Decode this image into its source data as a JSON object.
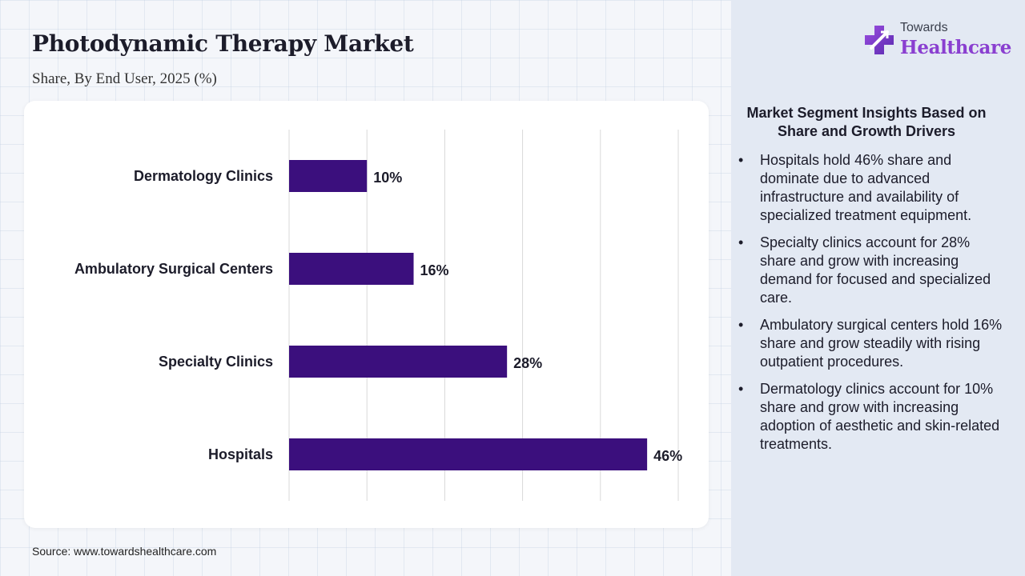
{
  "header": {
    "title": "Photodynamic Therapy Market",
    "subtitle": "Share, By End User, 2025 (%)"
  },
  "source": "Source: www.towardshealthcare.com",
  "logo": {
    "small_text": "Towards",
    "big_text": "Healthcare",
    "icon": "medical-cross-icon"
  },
  "insights": {
    "title": "Market Segment Insights Based on Share and Growth Drivers",
    "items": [
      "Hospitals hold 46% share and dominate due to advanced infrastructure and availability of specialized treatment equipment.",
      "Specialty clinics account for 28% share and grow with increasing demand for focused and specialized care.",
      "Ambulatory surgical centers hold 16% share and grow steadily with rising outpatient procedures.",
      "Dermatology clinics account for 10% share and grow with increasing adoption of aesthetic and skin-related treatments."
    ]
  },
  "colors": {
    "bar": "#3b0f7d",
    "accent": "#8a3fd0",
    "side_panel": "#e3e9f3"
  },
  "chart_data": {
    "type": "bar",
    "orientation": "horizontal",
    "categories": [
      "Dermatology Clinics",
      "Ambulatory Surgical Centers",
      "Specialty Clinics",
      "Hospitals"
    ],
    "values": [
      10,
      16,
      28,
      46
    ],
    "value_labels": [
      "10%",
      "16%",
      "28%",
      "46%"
    ],
    "xlim": [
      0,
      50
    ],
    "grid": true,
    "legend": "none"
  }
}
